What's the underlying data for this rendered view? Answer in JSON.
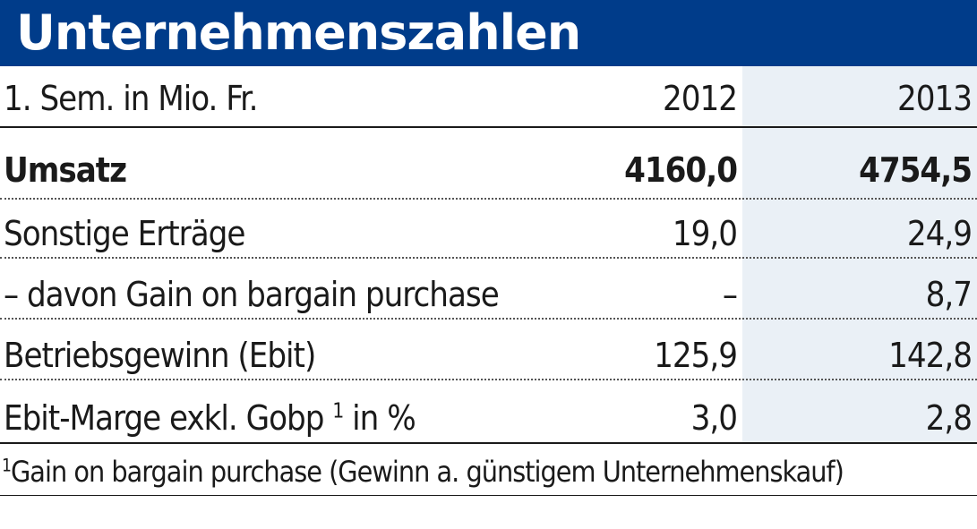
{
  "header": {
    "title": "Unternehmenszahlen"
  },
  "table": {
    "columns": {
      "label": "1. Sem. in Mio. Fr.",
      "y2012": "2012",
      "y2013": "2013"
    },
    "rows": [
      {
        "label": "Umsatz",
        "v2012": "4160,0",
        "v2013": "4754,5"
      },
      {
        "label": "Sonstige Erträge",
        "v2012": "19,0",
        "v2013": "24,9"
      },
      {
        "label": "– davon Gain on bargain purchase",
        "v2012": "–",
        "v2013": "8,7"
      },
      {
        "label": "Betriebsgewinn (Ebit)",
        "v2012": "125,9",
        "v2013": "142,8"
      },
      {
        "label": "Ebit-Marge exkl. Gobp",
        "label_sup": "1",
        "label_suffix": " in %",
        "v2012": "3,0",
        "v2013": "2,8"
      }
    ]
  },
  "footnote": {
    "marker": "1",
    "text": "Gain on bargain purchase (Gewinn a. günstigem Unternehmenskauf)"
  },
  "colors": {
    "header_bg": "#003c8a",
    "header_text": "#ffffff",
    "column_shade": "#eaf0f6",
    "text": "#1a1a1a"
  }
}
